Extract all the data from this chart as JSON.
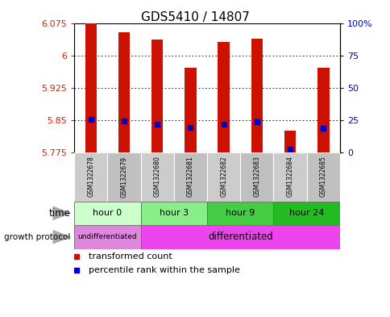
{
  "title": "GDS5410 / 14807",
  "samples": [
    "GSM1322678",
    "GSM1322679",
    "GSM1322680",
    "GSM1322681",
    "GSM1322682",
    "GSM1322683",
    "GSM1322684",
    "GSM1322685"
  ],
  "transformed_counts": [
    6.075,
    6.055,
    6.038,
    5.972,
    6.033,
    6.04,
    5.825,
    5.972
  ],
  "percentile_ranks": [
    25.5,
    24.5,
    21.5,
    19.0,
    22.0,
    23.5,
    2.0,
    18.5
  ],
  "bar_bottom": 5.775,
  "ylim_left": [
    5.775,
    6.075
  ],
  "ylim_right": [
    0,
    100
  ],
  "yticks_left": [
    5.775,
    5.85,
    5.925,
    6.0,
    6.075
  ],
  "yticks_right": [
    0,
    25,
    50,
    75,
    100
  ],
  "ytick_labels_left": [
    "5.775",
    "5.85",
    "5.925",
    "6",
    "6.075"
  ],
  "ytick_labels_right": [
    "0",
    "25",
    "50",
    "75",
    "100%"
  ],
  "left_tick_color": "#cc2200",
  "right_tick_color": "#0000cc",
  "bar_color": "#cc1100",
  "blue_marker_color": "#0000cc",
  "grid_color": "#000000",
  "time_groups": [
    {
      "label": "hour 0",
      "start": 0,
      "end": 2,
      "color": "#ccffcc"
    },
    {
      "label": "hour 3",
      "start": 2,
      "end": 4,
      "color": "#88ee88"
    },
    {
      "label": "hour 9",
      "start": 4,
      "end": 6,
      "color": "#44cc44"
    },
    {
      "label": "hour 24",
      "start": 6,
      "end": 8,
      "color": "#22bb22"
    }
  ],
  "growth_groups": [
    {
      "label": "undifferentiated",
      "start": 0,
      "end": 2,
      "color": "#dd88dd"
    },
    {
      "label": "differentiated",
      "start": 2,
      "end": 8,
      "color": "#ee44ee"
    }
  ],
  "legend_items": [
    {
      "label": "transformed count",
      "color": "#cc1100"
    },
    {
      "label": "percentile rank within the sample",
      "color": "#0000cc"
    }
  ],
  "bar_width": 0.35,
  "sample_bg_even": "#cccccc",
  "sample_bg_odd": "#c0c0c0"
}
